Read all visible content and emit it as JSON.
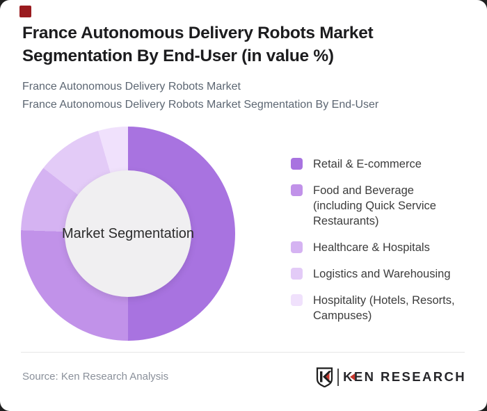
{
  "brand": {
    "corner_square_color": "#9a1b1f",
    "logo_red": "#c8362c",
    "logo_dark": "#26262a"
  },
  "header": {
    "title_line1": "France Autonomous Delivery Robots Market",
    "title_line2": "Segmentation By End-User (in value %)",
    "subtitle_line1": "France Autonomous Delivery Robots Market",
    "subtitle_line2": "France Autonomous Delivery Robots Market Segmentation By End-User"
  },
  "chart_data": {
    "type": "pie",
    "subtype": "donut",
    "title": "France Autonomous Delivery Robots Market Segmentation By End-User (in value %)",
    "center_label": "Market Segmentation",
    "start_angle_deg": 0,
    "donut_hole_ratio": 0.59,
    "legend_position": "right",
    "values_unit": "percent (estimated from arc angles; no numeric labels shown)",
    "series": [
      {
        "name": "Retail & E-commerce",
        "value": 50,
        "color": "#a873e0"
      },
      {
        "name": "Food and Beverage (including Quick Service Restaurants)",
        "value": 25.5,
        "color": "#c192e9"
      },
      {
        "name": "Healthcare & Hospitals",
        "value": 10,
        "color": "#d5b3f2"
      },
      {
        "name": "Logistics and Warehousing",
        "value": 10,
        "color": "#e3cbf7"
      },
      {
        "name": "Hospitality (Hotels, Resorts, Campuses)",
        "value": 4.5,
        "color": "#f0e1fc"
      }
    ]
  },
  "footer": {
    "source": "Source: Ken Research Analysis",
    "logo_text": "KEN RESEARCH"
  }
}
